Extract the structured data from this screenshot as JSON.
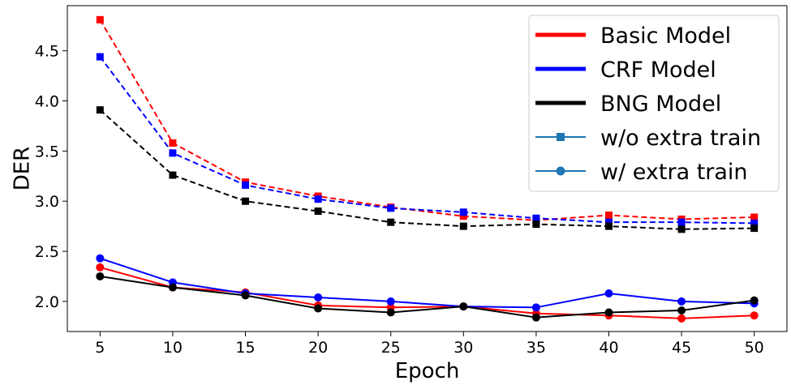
{
  "chart_data": {
    "type": "line",
    "xlabel": "Epoch",
    "ylabel": "DER",
    "x": [
      5,
      10,
      15,
      20,
      25,
      30,
      35,
      40,
      45,
      50
    ],
    "xticks": [
      "5",
      "10",
      "15",
      "20",
      "25",
      "30",
      "35",
      "40",
      "45",
      "50"
    ],
    "yticks": [
      "2.0",
      "2.5",
      "3.0",
      "3.5",
      "4.0",
      "4.5"
    ],
    "xlim": [
      2.75,
      52.25
    ],
    "ylim": [
      1.7,
      4.95
    ],
    "grid": false,
    "legend_position": "top-right",
    "series": [
      {
        "model": "Basic Model",
        "variant": "w/o extra train",
        "color": "#ff0000",
        "linestyle": "dashed",
        "marker": "square",
        "values": [
          4.81,
          3.58,
          3.19,
          3.05,
          2.94,
          2.85,
          2.81,
          2.86,
          2.82,
          2.84
        ]
      },
      {
        "model": "CRF Model",
        "variant": "w/o extra train",
        "color": "#0000ff",
        "linestyle": "dashed",
        "marker": "square",
        "values": [
          4.44,
          3.48,
          3.16,
          3.02,
          2.93,
          2.89,
          2.83,
          2.79,
          2.79,
          2.78
        ]
      },
      {
        "model": "BNG Model",
        "variant": "w/o extra train",
        "color": "#000000",
        "linestyle": "dashed",
        "marker": "square",
        "values": [
          3.91,
          3.26,
          3.0,
          2.9,
          2.79,
          2.75,
          2.77,
          2.75,
          2.72,
          2.73
        ]
      },
      {
        "model": "Basic Model",
        "variant": "w/ extra train",
        "color": "#ff0000",
        "linestyle": "solid",
        "marker": "circle",
        "values": [
          2.34,
          2.14,
          2.09,
          1.96,
          1.94,
          1.95,
          1.88,
          1.86,
          1.83,
          1.86
        ]
      },
      {
        "model": "CRF Model",
        "variant": "w/ extra train",
        "color": "#0000ff",
        "linestyle": "solid",
        "marker": "circle",
        "values": [
          2.43,
          2.19,
          2.08,
          2.04,
          2.0,
          1.95,
          1.94,
          2.08,
          2.0,
          1.98
        ]
      },
      {
        "model": "BNG Model",
        "variant": "w/ extra train",
        "color": "#000000",
        "linestyle": "solid",
        "marker": "circle",
        "values": [
          2.25,
          2.14,
          2.06,
          1.93,
          1.89,
          1.95,
          1.84,
          1.89,
          1.91,
          2.01
        ]
      }
    ],
    "legend": [
      {
        "label": "Basic Model",
        "kind": "line",
        "color": "#ff0000"
      },
      {
        "label": "CRF Model",
        "kind": "line",
        "color": "#0000ff"
      },
      {
        "label": "BNG Model",
        "kind": "line",
        "color": "#000000"
      },
      {
        "label": "w/o extra train",
        "kind": "marker-square",
        "color": "#1f77b4"
      },
      {
        "label": "w/ extra train",
        "kind": "marker-circle",
        "color": "#1f77b4"
      }
    ]
  }
}
